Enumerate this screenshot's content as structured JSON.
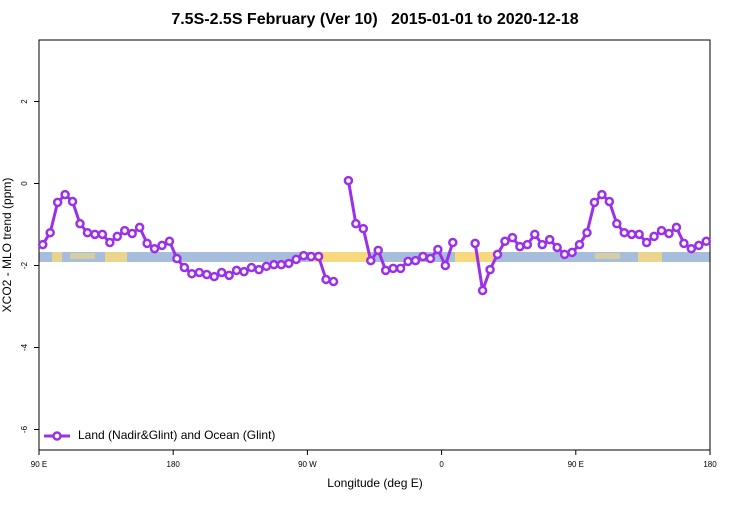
{
  "chart_data": {
    "type": "line",
    "title": "7.5S-2.5S February (Ver 10)   2015-01-01 to 2020-12-18",
    "x_label": "Longitude (deg E)",
    "y_label": "XCO2 - MLO trend (ppm)",
    "xlim": [
      90,
      540
    ],
    "xticks": [
      {
        "value": 90,
        "label": "90 E"
      },
      {
        "value": 180,
        "label": "180"
      },
      {
        "value": 270,
        "label": "90 W"
      },
      {
        "value": 360,
        "label": "0"
      },
      {
        "value": 450,
        "label": "90 E"
      },
      {
        "value": 540,
        "label": "180"
      }
    ],
    "ylim": [
      -6.5,
      3.5
    ],
    "yticks": [
      -6,
      -4,
      -2,
      0,
      2
    ],
    "grid": false,
    "legend": "bottom-left",
    "x": [
      92.5,
      97.5,
      102.5,
      107.5,
      112.5,
      117.5,
      122.5,
      127.5,
      132.5,
      137.5,
      142.5,
      147.5,
      152.5,
      157.5,
      162.5,
      167.5,
      172.5,
      177.5,
      182.5,
      187.5,
      192.5,
      197.5,
      202.5,
      207.5,
      212.5,
      217.5,
      222.5,
      227.5,
      232.5,
      237.5,
      242.5,
      247.5,
      252.5,
      257.5,
      262.5,
      267.5,
      272.5,
      277.5,
      282.5,
      287.5,
      292.5,
      297.5,
      302.5,
      307.5,
      312.5,
      317.5,
      322.5,
      327.5,
      332.5,
      337.5,
      342.5,
      347.5,
      352.5,
      357.5,
      362.5,
      367.5,
      372.5,
      377.5,
      382.5,
      387.5,
      392.5,
      397.5,
      402.5,
      407.5,
      412.5,
      417.5,
      422.5,
      427.5,
      432.5,
      437.5,
      442.5,
      447.5,
      452.5,
      457.5,
      462.5,
      467.5,
      472.5,
      477.5,
      482.5,
      487.5,
      492.5,
      497.5,
      502.5,
      507.5,
      512.5,
      517.5,
      522.5,
      527.5,
      532.5,
      537.5
    ],
    "series": [
      {
        "name": "Land (Nadir&Glint) and Ocean (Glint)",
        "color": "#9b30e8",
        "values": [
          -1.49,
          -1.2,
          -0.46,
          -0.27,
          -0.44,
          -0.98,
          -1.2,
          -1.24,
          -1.24,
          -1.44,
          -1.29,
          -1.15,
          -1.22,
          -1.07,
          -1.46,
          -1.59,
          -1.51,
          -1.41,
          -1.83,
          -2.05,
          -2.2,
          -2.17,
          -2.22,
          -2.27,
          -2.17,
          -2.24,
          -2.12,
          -2.15,
          -2.05,
          -2.1,
          -2.02,
          -1.98,
          -1.98,
          -1.95,
          -1.85,
          -1.76,
          -1.78,
          -1.78,
          -2.34,
          -2.39,
          null,
          0.07,
          -0.98,
          -1.1,
          -1.88,
          -1.63,
          -2.12,
          -2.07,
          -2.07,
          -1.9,
          -1.88,
          -1.78,
          -1.83,
          -1.61,
          -2.0,
          -1.44,
          null,
          null,
          -1.46,
          -2.61,
          -2.1,
          -1.73,
          -1.41,
          -1.32,
          -1.54,
          -1.49,
          -1.24,
          -1.49,
          -1.37,
          -1.56,
          -1.73,
          -1.68,
          -1.49,
          -1.2,
          -0.46,
          -0.27,
          -0.44,
          -0.98,
          -1.2,
          -1.24,
          -1.24,
          -1.44,
          -1.29,
          -1.15,
          -1.22,
          -1.07,
          -1.46,
          -1.59,
          -1.51,
          -1.41
        ]
      }
    ]
  }
}
